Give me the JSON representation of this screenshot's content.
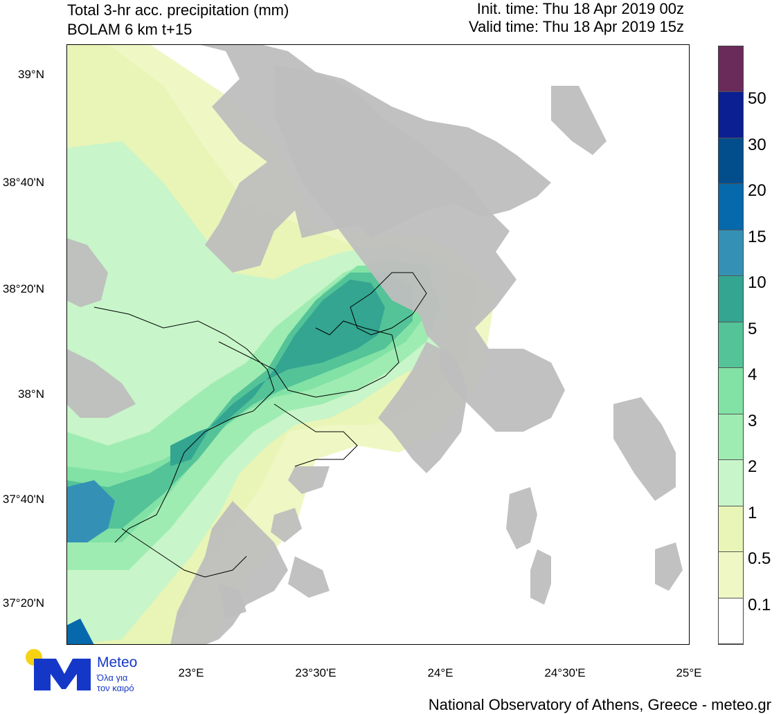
{
  "header": {
    "title": "Total 3-hr acc. precipitation (mm)",
    "subtitle": "BOLAM 6 km t+15",
    "init_time": "Init. time: Thu 18 Apr 2019 00z",
    "valid_time": "Valid time: Thu 18 Apr 2019 15z"
  },
  "map": {
    "lat_labels": [
      "39°N",
      "38°40'N",
      "38°20'N",
      "38°N",
      "37°40'N",
      "37°20'N"
    ],
    "lon_labels": [
      "23°E",
      "23°30'E",
      "24°E",
      "24°30'E",
      "25°E"
    ],
    "land_color": "#bebebe",
    "sea_color": "#ffffff"
  },
  "colorbar": {
    "levels": [
      "0.1",
      "0.5",
      "1",
      "2",
      "3",
      "4",
      "5",
      "10",
      "15",
      "20",
      "30",
      "50"
    ],
    "colors": [
      "#ffffff",
      "#eff7c4",
      "#e8f5b6",
      "#c8f5c9",
      "#9fecb2",
      "#82e2a6",
      "#54c398",
      "#33a590",
      "#3491b5",
      "#0669ab",
      "#024e8c",
      "#0b1e92",
      "#6a2a5a"
    ]
  },
  "logo": {
    "name": "Meteo",
    "tagline_1": "Όλα για",
    "tagline_2": "τον καιρό"
  },
  "footer": "National Observatory of Athens, Greece - meteo.gr"
}
